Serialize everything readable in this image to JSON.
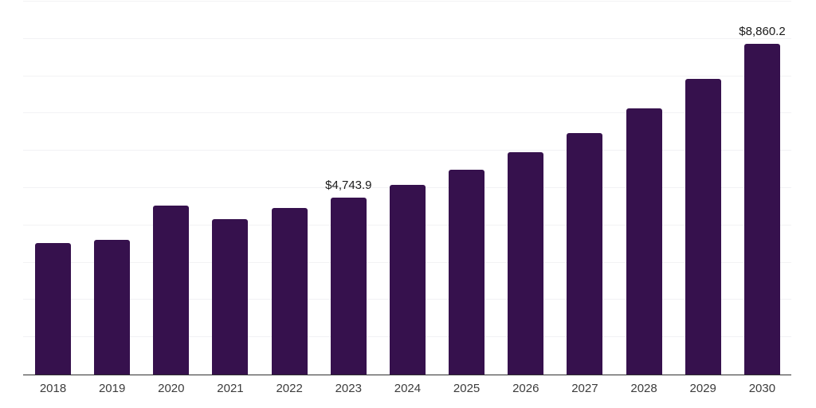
{
  "chart_data": {
    "type": "bar",
    "title": "",
    "xlabel": "",
    "ylabel": "",
    "categories": [
      "2018",
      "2019",
      "2020",
      "2021",
      "2022",
      "2023",
      "2024",
      "2025",
      "2026",
      "2027",
      "2028",
      "2029",
      "2030"
    ],
    "values": [
      3525,
      3620,
      4540,
      4175,
      4465,
      4743.9,
      5085,
      5490,
      5960,
      6485,
      7145,
      7930,
      8860.2
    ],
    "value_labels": {
      "2023": "$4,743.9",
      "2030": "$8,860.2"
    },
    "ylim": [
      0,
      10000
    ],
    "grid_interval": 1000,
    "grid": "horizontal-only",
    "legend": "none",
    "colors": {
      "bar": "#36114D",
      "axis_line": "#303030",
      "gridline": "#f2f2f4",
      "tick_label": "#3c3c3c",
      "value_label": "#1a1a1a",
      "background": "#ffffff"
    }
  }
}
